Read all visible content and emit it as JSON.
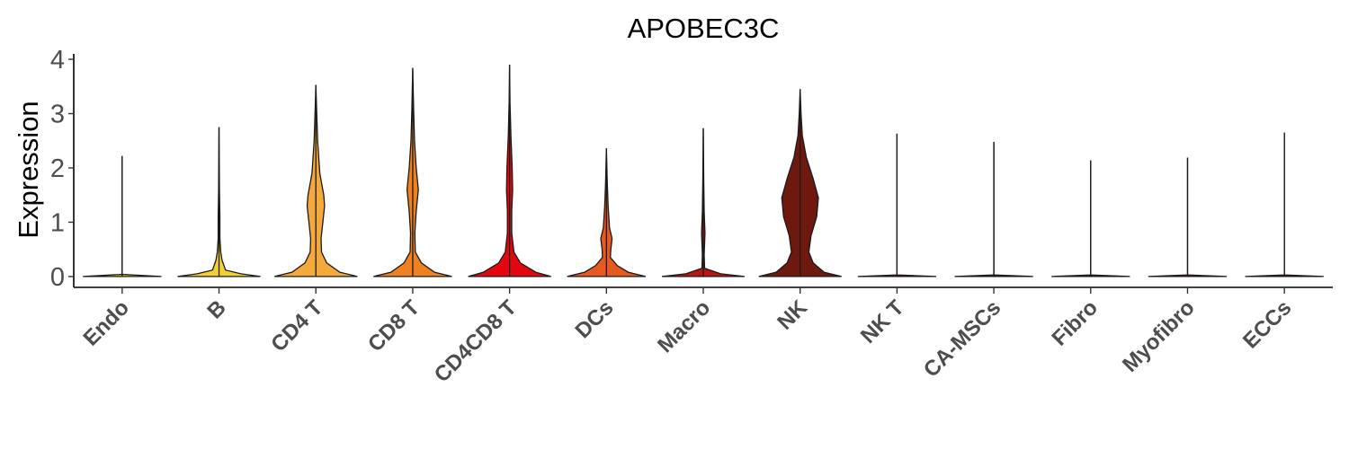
{
  "chart_data": {
    "type": "violin",
    "title": "APOBEC3C",
    "xlabel": "",
    "ylabel": "Expression",
    "ylim": [
      -0.2,
      4.1
    ],
    "yticks": [
      "0",
      "1",
      "2",
      "3",
      "4"
    ],
    "grid": false,
    "legend": "none",
    "categories": [
      "Endo",
      "B",
      "CD4 T",
      "CD8 T",
      "CD4CD8 T",
      "DCs",
      "Macro",
      "NK",
      "NK T",
      "CA-MSCs",
      "Fibro",
      "Myofibro",
      "ECCs"
    ],
    "colors": [
      "#f5d033",
      "#f5d033",
      "#f5a93a",
      "#f08121",
      "#e3060f",
      "#e8591d",
      "#b81512",
      "#6e180e",
      "#6e180e",
      "#6e180e",
      "#6e180e",
      "#6e180e",
      "#6e180e"
    ],
    "max_expression": [
      2.22,
      2.75,
      3.53,
      3.84,
      3.9,
      2.36,
      2.73,
      3.45,
      2.63,
      2.48,
      2.14,
      2.19,
      2.65
    ],
    "density": [
      [
        [
          0,
          0.9
        ],
        [
          0.04,
          0.0
        ],
        [
          2.22,
          0.0
        ]
      ],
      [
        [
          0,
          0.95
        ],
        [
          0.05,
          0.5
        ],
        [
          0.12,
          0.15
        ],
        [
          0.3,
          0.07
        ],
        [
          0.45,
          0.04
        ],
        [
          0.7,
          0.02
        ],
        [
          1.1,
          0.02
        ],
        [
          1.6,
          0.01
        ],
        [
          2.75,
          0.0
        ]
      ],
      [
        [
          0,
          0.95
        ],
        [
          0.08,
          0.55
        ],
        [
          0.25,
          0.25
        ],
        [
          0.45,
          0.13
        ],
        [
          0.7,
          0.12
        ],
        [
          1.0,
          0.16
        ],
        [
          1.3,
          0.2
        ],
        [
          1.5,
          0.18
        ],
        [
          1.9,
          0.09
        ],
        [
          2.5,
          0.04
        ],
        [
          3.0,
          0.02
        ],
        [
          3.53,
          0.0
        ]
      ],
      [
        [
          0,
          0.9
        ],
        [
          0.08,
          0.5
        ],
        [
          0.25,
          0.2
        ],
        [
          0.45,
          0.06
        ],
        [
          0.8,
          0.05
        ],
        [
          1.2,
          0.08
        ],
        [
          1.6,
          0.13
        ],
        [
          2.0,
          0.08
        ],
        [
          2.5,
          0.04
        ],
        [
          3.1,
          0.02
        ],
        [
          3.84,
          0.0
        ]
      ],
      [
        [
          0,
          0.95
        ],
        [
          0.08,
          0.6
        ],
        [
          0.25,
          0.25
        ],
        [
          0.45,
          0.1
        ],
        [
          0.8,
          0.05
        ],
        [
          1.2,
          0.05
        ],
        [
          1.6,
          0.07
        ],
        [
          2.0,
          0.06
        ],
        [
          2.6,
          0.03
        ],
        [
          3.2,
          0.01
        ],
        [
          3.9,
          0.0
        ]
      ],
      [
        [
          0,
          0.9
        ],
        [
          0.08,
          0.5
        ],
        [
          0.2,
          0.25
        ],
        [
          0.35,
          0.09
        ],
        [
          0.5,
          0.1
        ],
        [
          0.7,
          0.13
        ],
        [
          0.9,
          0.07
        ],
        [
          1.3,
          0.04
        ],
        [
          1.7,
          0.02
        ],
        [
          2.36,
          0.0
        ]
      ],
      [
        [
          0,
          0.95
        ],
        [
          0.05,
          0.4
        ],
        [
          0.15,
          0.03
        ],
        [
          0.4,
          0.02
        ],
        [
          0.8,
          0.04
        ],
        [
          1.2,
          0.02
        ],
        [
          1.8,
          0.01
        ],
        [
          2.73,
          0.0
        ]
      ],
      [
        [
          0,
          0.95
        ],
        [
          0.08,
          0.55
        ],
        [
          0.25,
          0.3
        ],
        [
          0.45,
          0.2
        ],
        [
          0.75,
          0.25
        ],
        [
          1.1,
          0.38
        ],
        [
          1.45,
          0.42
        ],
        [
          1.8,
          0.3
        ],
        [
          2.2,
          0.14
        ],
        [
          2.6,
          0.05
        ],
        [
          3.0,
          0.02
        ],
        [
          3.45,
          0.0
        ]
      ],
      [
        [
          0,
          0.9
        ],
        [
          0.03,
          0.0
        ],
        [
          2.63,
          0.0
        ]
      ],
      [
        [
          0,
          0.9
        ],
        [
          0.03,
          0.0
        ],
        [
          2.48,
          0.0
        ]
      ],
      [
        [
          0,
          0.9
        ],
        [
          0.03,
          0.0
        ],
        [
          2.14,
          0.0
        ]
      ],
      [
        [
          0,
          0.9
        ],
        [
          0.03,
          0.0
        ],
        [
          2.19,
          0.0
        ]
      ],
      [
        [
          0,
          0.9
        ],
        [
          0.03,
          0.0
        ],
        [
          2.65,
          0.0
        ]
      ]
    ]
  }
}
